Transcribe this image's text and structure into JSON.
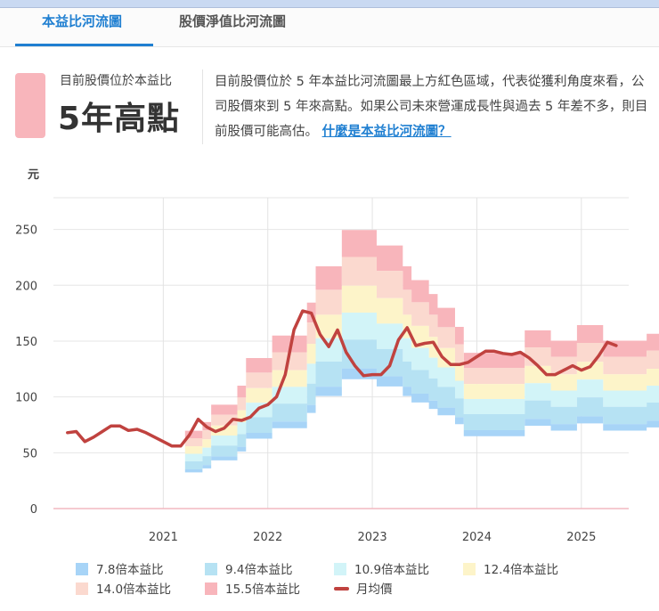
{
  "tabs": [
    {
      "label": "本益比河流圖",
      "active": true
    },
    {
      "label": "股價淨值比河流圖",
      "active": false
    }
  ],
  "summary": {
    "label": "目前股價位於本益比",
    "status": "5年高點",
    "status_color": "#f8b5bb",
    "description": "目前股價位於 5 年本益比河流圖最上方紅色區域，代表從獲利角度來看，公司股價來到 5 年來高點。如果公司未來營運成長性與過去 5 年差不多，則目前股價可能高估。",
    "link_text": "什麼是本益比河流圖？"
  },
  "chart_data": {
    "type": "area",
    "title": "本益比河流圖",
    "ylabel": "元",
    "xlabel": "",
    "ylim": [
      0,
      280
    ],
    "yticks": [
      0,
      50,
      100,
      150,
      200,
      250
    ],
    "xticks": [
      "2021",
      "2022",
      "2023",
      "2024",
      "2025"
    ],
    "grid": true,
    "legend_position": "bottom",
    "x_month_index_note": "months since Jan 2020",
    "multiples": [
      7.8,
      9.4,
      10.9,
      12.4,
      14.0,
      15.5
    ],
    "series": [
      {
        "name": "7.8倍本益比",
        "color": "#a7d4f7"
      },
      {
        "name": "9.4倍本益比",
        "color": "#b6e2f3"
      },
      {
        "name": "10.9倍本益比",
        "color": "#d2f4f8"
      },
      {
        "name": "12.4倍本益比",
        "color": "#fdf4c9"
      },
      {
        "name": "14.0倍本益比",
        "color": "#fbd9cf"
      },
      {
        "name": "15.5倍本益比",
        "color": "#f8b5bb"
      },
      {
        "name": "月均價",
        "color": "#c0423f"
      }
    ],
    "eps": {
      "start_month": 15,
      "values": [
        4.5,
        4.5,
        5.0,
        6.0,
        6.0,
        6.0,
        7.1,
        8.7,
        8.7,
        8.7,
        10.0,
        10.0,
        10.0,
        10.0,
        11.9,
        14.0,
        14.0,
        14.0,
        16.1,
        16.1,
        16.1,
        16.1,
        15.2,
        15.2,
        15.2,
        14.0,
        13.2,
        13.2,
        12.4,
        11.6,
        11.6,
        10.5,
        9.0,
        9.0,
        9.0,
        9.0,
        9.0,
        9.0,
        9.0,
        10.3,
        10.3,
        10.3,
        9.7,
        9.7,
        9.7,
        10.6,
        10.6,
        10.6,
        9.7,
        9.7,
        9.7,
        9.7,
        9.7,
        10.1,
        10.1,
        10.1
      ]
    },
    "price": {
      "start_month": 1,
      "values": [
        68,
        69,
        60,
        64,
        69,
        74,
        74,
        70,
        71,
        68,
        64,
        60,
        56,
        56,
        66,
        80,
        73,
        69,
        72,
        80,
        79,
        82,
        90,
        93,
        100,
        120,
        160,
        177,
        175,
        156,
        145,
        160,
        140,
        128,
        119,
        120,
        120,
        128,
        151,
        162,
        146,
        148,
        149,
        136,
        129,
        129,
        131,
        136,
        141,
        141,
        139,
        138,
        140,
        135,
        128,
        120,
        120,
        124,
        128,
        124,
        127,
        137,
        149,
        146
      ]
    }
  },
  "legend": [
    {
      "label": "7.8倍本益比",
      "color": "#a7d4f7",
      "type": "box"
    },
    {
      "label": "9.4倍本益比",
      "color": "#b6e2f3",
      "type": "box"
    },
    {
      "label": "10.9倍本益比",
      "color": "#d2f4f8",
      "type": "box"
    },
    {
      "label": "12.4倍本益比",
      "color": "#fdf4c9",
      "type": "box"
    },
    {
      "label": "14.0倍本益比",
      "color": "#fbd9cf",
      "type": "box"
    },
    {
      "label": "15.5倍本益比",
      "color": "#f8b5bb",
      "type": "box"
    },
    {
      "label": "月均價",
      "color": "#c0423f",
      "type": "line"
    }
  ]
}
